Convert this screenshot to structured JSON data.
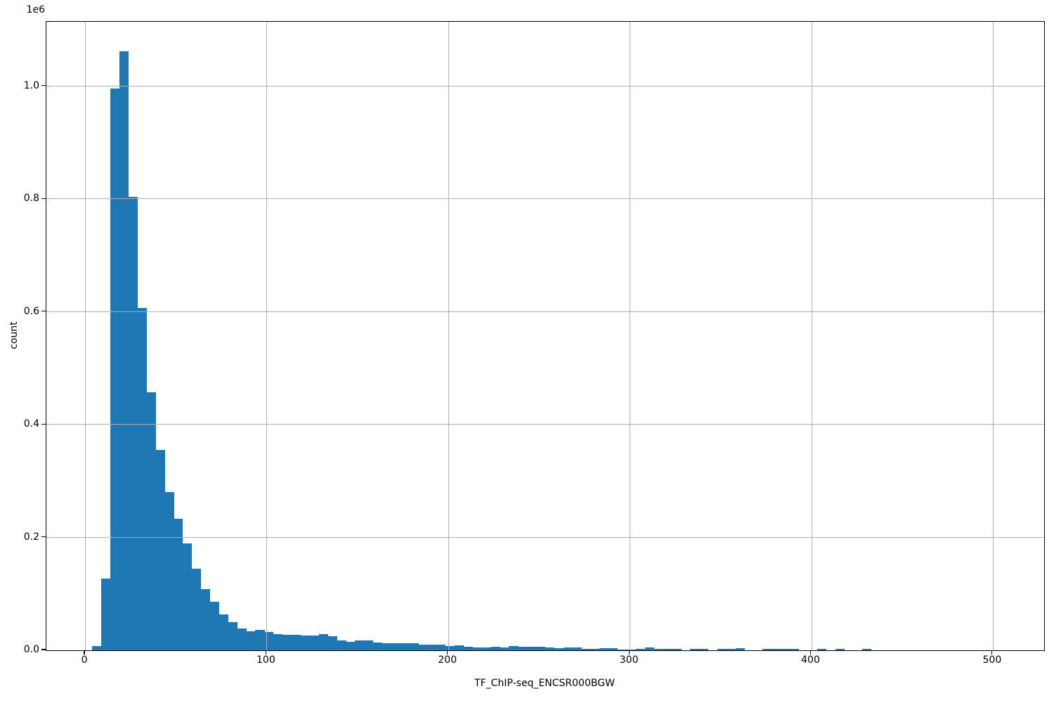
{
  "colors": {
    "bar": "#1f77b4",
    "grid": "#b0b0b0",
    "spine": "#000000",
    "background": "#ffffff",
    "text": "#000000"
  },
  "chart_data": {
    "type": "bar",
    "subtype": "histogram",
    "title": "",
    "xlabel": "TF_ChIP-seq_ENCSR000BGW",
    "ylabel": "count",
    "y_offset_text": "1e6",
    "grid": true,
    "legend_position": "none",
    "xlim": [
      -21.3,
      528.3
    ],
    "ylim_1e6": [
      0,
      1.1144
    ],
    "x_ticks": [
      0,
      100,
      200,
      300,
      400,
      500
    ],
    "x_tick_labels": [
      "0",
      "100",
      "200",
      "300",
      "400",
      "500"
    ],
    "y_ticks_1e6": [
      0.0,
      0.2,
      0.4,
      0.6,
      0.8,
      1.0
    ],
    "y_tick_labels": [
      "0.0",
      "0.2",
      "0.4",
      "0.6",
      "0.8",
      "1.0"
    ],
    "bins": {
      "start": 4.0,
      "width": 4.99,
      "count": 100
    },
    "counts_1e6": [
      0.008,
      0.127,
      0.996,
      1.062,
      0.804,
      0.607,
      0.457,
      0.355,
      0.281,
      0.233,
      0.19,
      0.145,
      0.108,
      0.086,
      0.063,
      0.0495,
      0.039,
      0.034,
      0.036,
      0.032,
      0.029,
      0.028,
      0.027,
      0.026,
      0.026,
      0.029,
      0.0245,
      0.018,
      0.015,
      0.018,
      0.018,
      0.014,
      0.013,
      0.013,
      0.013,
      0.0125,
      0.01,
      0.01,
      0.0096,
      0.007,
      0.009,
      0.006,
      0.0054,
      0.0054,
      0.0062,
      0.005,
      0.007,
      0.0065,
      0.006,
      0.006,
      0.0055,
      0.0037,
      0.005,
      0.005,
      0.003,
      0.002,
      0.004,
      0.004,
      0.001,
      0.0016,
      0.003,
      0.0046,
      0.003,
      0.003,
      0.003,
      0,
      0.003,
      0.003,
      0,
      0.002,
      0.002,
      0.004,
      0,
      0,
      0.002,
      0.002,
      0.002,
      0.002,
      0,
      0,
      0.002,
      0,
      0.002,
      0,
      0,
      0.0022,
      0,
      0,
      0,
      0,
      0,
      0,
      0,
      0,
      0,
      0,
      0,
      0,
      0,
      0
    ]
  }
}
